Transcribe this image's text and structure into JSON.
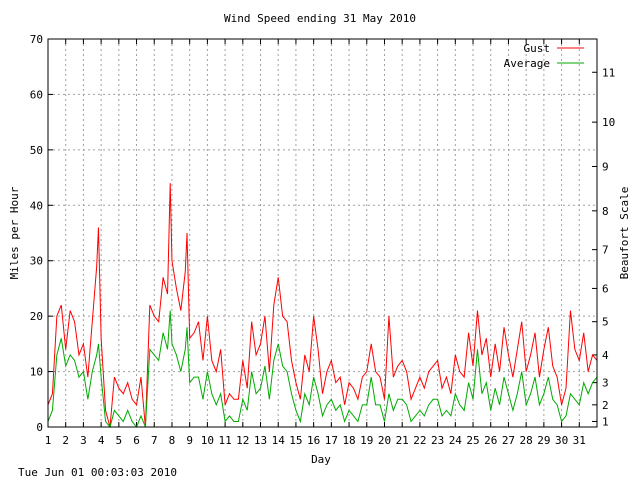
{
  "chart_data": {
    "type": "line",
    "title": "Wind Speed ending 31 May 2010",
    "xlabel": "Day",
    "ylabel": "Miles per Hour",
    "y2label": "Beaufort Scale",
    "xlim": [
      1,
      32
    ],
    "ylim": [
      0,
      70
    ],
    "x_ticks": [
      "1",
      "2",
      "3",
      "4",
      "5",
      "6",
      "7",
      "8",
      "9",
      "10",
      "11",
      "12",
      "13",
      "14",
      "15",
      "16",
      "17",
      "18",
      "19",
      "20",
      "21",
      "22",
      "23",
      "24",
      "25",
      "26",
      "27",
      "28",
      "29",
      "30",
      "31"
    ],
    "y_ticks": [
      0,
      10,
      20,
      30,
      40,
      50,
      60,
      70
    ],
    "beaufort_ticks": [
      {
        "label": "1",
        "mph": 1
      },
      {
        "label": "2",
        "mph": 4
      },
      {
        "label": "3",
        "mph": 8
      },
      {
        "label": "4",
        "mph": 13
      },
      {
        "label": "5",
        "mph": 19
      },
      {
        "label": "6",
        "mph": 25
      },
      {
        "label": "7",
        "mph": 32
      },
      {
        "label": "8",
        "mph": 39
      },
      {
        "label": "9",
        "mph": 47
      },
      {
        "label": "10",
        "mph": 55
      },
      {
        "label": "11",
        "mph": 64
      }
    ],
    "grid": true,
    "legend_position": "top-right",
    "series": [
      {
        "name": "Gust",
        "color": "#ff0000",
        "points": [
          [
            1.0,
            4
          ],
          [
            1.25,
            6
          ],
          [
            1.5,
            20
          ],
          [
            1.75,
            22
          ],
          [
            2.0,
            14
          ],
          [
            2.25,
            21
          ],
          [
            2.5,
            19
          ],
          [
            2.75,
            13
          ],
          [
            3.0,
            15
          ],
          [
            3.25,
            9
          ],
          [
            3.5,
            19
          ],
          [
            3.75,
            29
          ],
          [
            3.85,
            36
          ],
          [
            4.0,
            16
          ],
          [
            4.25,
            3
          ],
          [
            4.5,
            0
          ],
          [
            4.75,
            9
          ],
          [
            5.0,
            7
          ],
          [
            5.25,
            6
          ],
          [
            5.5,
            8
          ],
          [
            5.75,
            5
          ],
          [
            6.0,
            4
          ],
          [
            6.25,
            9
          ],
          [
            6.5,
            0
          ],
          [
            6.75,
            22
          ],
          [
            7.0,
            20
          ],
          [
            7.25,
            19
          ],
          [
            7.5,
            27
          ],
          [
            7.75,
            24
          ],
          [
            7.9,
            44
          ],
          [
            8.0,
            30
          ],
          [
            8.25,
            25
          ],
          [
            8.5,
            21
          ],
          [
            8.75,
            28
          ],
          [
            8.85,
            35
          ],
          [
            9.0,
            16
          ],
          [
            9.25,
            17
          ],
          [
            9.5,
            19
          ],
          [
            9.75,
            12
          ],
          [
            10.0,
            20
          ],
          [
            10.25,
            12
          ],
          [
            10.5,
            10
          ],
          [
            10.75,
            14
          ],
          [
            11.0,
            4
          ],
          [
            11.25,
            6
          ],
          [
            11.5,
            5
          ],
          [
            11.75,
            5
          ],
          [
            12.0,
            12
          ],
          [
            12.25,
            7
          ],
          [
            12.5,
            19
          ],
          [
            12.75,
            13
          ],
          [
            13.0,
            15
          ],
          [
            13.25,
            20
          ],
          [
            13.5,
            10
          ],
          [
            13.75,
            22
          ],
          [
            14.0,
            27
          ],
          [
            14.25,
            20
          ],
          [
            14.5,
            19
          ],
          [
            14.75,
            12
          ],
          [
            15.0,
            8
          ],
          [
            15.25,
            5
          ],
          [
            15.5,
            13
          ],
          [
            15.75,
            10
          ],
          [
            16.0,
            20
          ],
          [
            16.25,
            14
          ],
          [
            16.5,
            6
          ],
          [
            16.75,
            10
          ],
          [
            17.0,
            12
          ],
          [
            17.25,
            8
          ],
          [
            17.5,
            9
          ],
          [
            17.75,
            4
          ],
          [
            18.0,
            8
          ],
          [
            18.25,
            7
          ],
          [
            18.5,
            5
          ],
          [
            18.75,
            9
          ],
          [
            19.0,
            10
          ],
          [
            19.25,
            15
          ],
          [
            19.5,
            10
          ],
          [
            19.75,
            9
          ],
          [
            20.0,
            5
          ],
          [
            20.25,
            20
          ],
          [
            20.5,
            9
          ],
          [
            20.75,
            11
          ],
          [
            21.0,
            12
          ],
          [
            21.25,
            10
          ],
          [
            21.5,
            5
          ],
          [
            21.75,
            7
          ],
          [
            22.0,
            9
          ],
          [
            22.25,
            7
          ],
          [
            22.5,
            10
          ],
          [
            22.75,
            11
          ],
          [
            23.0,
            12
          ],
          [
            23.25,
            7
          ],
          [
            23.5,
            9
          ],
          [
            23.75,
            6
          ],
          [
            24.0,
            13
          ],
          [
            24.25,
            10
          ],
          [
            24.5,
            9
          ],
          [
            24.75,
            17
          ],
          [
            25.0,
            11
          ],
          [
            25.25,
            21
          ],
          [
            25.5,
            13
          ],
          [
            25.75,
            16
          ],
          [
            26.0,
            9
          ],
          [
            26.25,
            15
          ],
          [
            26.5,
            10
          ],
          [
            26.75,
            18
          ],
          [
            27.0,
            13
          ],
          [
            27.25,
            9
          ],
          [
            27.5,
            14
          ],
          [
            27.75,
            19
          ],
          [
            28.0,
            10
          ],
          [
            28.25,
            13
          ],
          [
            28.5,
            17
          ],
          [
            28.75,
            9
          ],
          [
            29.0,
            14
          ],
          [
            29.25,
            18
          ],
          [
            29.5,
            11
          ],
          [
            29.75,
            9
          ],
          [
            30.0,
            4
          ],
          [
            30.25,
            7
          ],
          [
            30.5,
            21
          ],
          [
            30.75,
            14
          ],
          [
            31.0,
            12
          ],
          [
            31.25,
            17
          ],
          [
            31.5,
            10
          ],
          [
            31.75,
            13
          ],
          [
            32.0,
            12
          ]
        ]
      },
      {
        "name": "Average",
        "color": "#00aa00",
        "points": [
          [
            1.0,
            1
          ],
          [
            1.25,
            3
          ],
          [
            1.5,
            13
          ],
          [
            1.75,
            16
          ],
          [
            2.0,
            11
          ],
          [
            2.25,
            13
          ],
          [
            2.5,
            12
          ],
          [
            2.75,
            9
          ],
          [
            3.0,
            10
          ],
          [
            3.25,
            5
          ],
          [
            3.5,
            10
          ],
          [
            3.75,
            13
          ],
          [
            3.85,
            15
          ],
          [
            4.0,
            9
          ],
          [
            4.25,
            1
          ],
          [
            4.5,
            0
          ],
          [
            4.75,
            3
          ],
          [
            5.0,
            2
          ],
          [
            5.25,
            1
          ],
          [
            5.5,
            3
          ],
          [
            5.75,
            1
          ],
          [
            6.0,
            0
          ],
          [
            6.25,
            2
          ],
          [
            6.5,
            0
          ],
          [
            6.75,
            14
          ],
          [
            7.0,
            13
          ],
          [
            7.25,
            12
          ],
          [
            7.5,
            17
          ],
          [
            7.75,
            14
          ],
          [
            7.9,
            21
          ],
          [
            8.0,
            15
          ],
          [
            8.25,
            13
          ],
          [
            8.5,
            10
          ],
          [
            8.75,
            14
          ],
          [
            8.85,
            18
          ],
          [
            9.0,
            8
          ],
          [
            9.25,
            9
          ],
          [
            9.5,
            9
          ],
          [
            9.75,
            5
          ],
          [
            10.0,
            10
          ],
          [
            10.25,
            6
          ],
          [
            10.5,
            4
          ],
          [
            10.75,
            6
          ],
          [
            11.0,
            1
          ],
          [
            11.25,
            2
          ],
          [
            11.5,
            1
          ],
          [
            11.75,
            1
          ],
          [
            12.0,
            5
          ],
          [
            12.25,
            3
          ],
          [
            12.5,
            10
          ],
          [
            12.75,
            6
          ],
          [
            13.0,
            7
          ],
          [
            13.25,
            11
          ],
          [
            13.5,
            5
          ],
          [
            13.75,
            12
          ],
          [
            14.0,
            15
          ],
          [
            14.25,
            11
          ],
          [
            14.5,
            10
          ],
          [
            14.75,
            6
          ],
          [
            15.0,
            3
          ],
          [
            15.25,
            1
          ],
          [
            15.5,
            6
          ],
          [
            15.75,
            4
          ],
          [
            16.0,
            9
          ],
          [
            16.25,
            6
          ],
          [
            16.5,
            2
          ],
          [
            16.75,
            4
          ],
          [
            17.0,
            5
          ],
          [
            17.25,
            3
          ],
          [
            17.5,
            4
          ],
          [
            17.75,
            1
          ],
          [
            18.0,
            3
          ],
          [
            18.25,
            2
          ],
          [
            18.5,
            1
          ],
          [
            18.75,
            4
          ],
          [
            19.0,
            4
          ],
          [
            19.25,
            9
          ],
          [
            19.5,
            4
          ],
          [
            19.75,
            4
          ],
          [
            20.0,
            1
          ],
          [
            20.25,
            6
          ],
          [
            20.5,
            3
          ],
          [
            20.75,
            5
          ],
          [
            21.0,
            5
          ],
          [
            21.25,
            4
          ],
          [
            21.5,
            1
          ],
          [
            21.75,
            2
          ],
          [
            22.0,
            3
          ],
          [
            22.25,
            2
          ],
          [
            22.5,
            4
          ],
          [
            22.75,
            5
          ],
          [
            23.0,
            5
          ],
          [
            23.25,
            2
          ],
          [
            23.5,
            3
          ],
          [
            23.75,
            2
          ],
          [
            24.0,
            6
          ],
          [
            24.25,
            4
          ],
          [
            24.5,
            3
          ],
          [
            24.75,
            8
          ],
          [
            25.0,
            5
          ],
          [
            25.25,
            14
          ],
          [
            25.5,
            6
          ],
          [
            25.75,
            8
          ],
          [
            26.0,
            3
          ],
          [
            26.25,
            7
          ],
          [
            26.5,
            4
          ],
          [
            26.75,
            9
          ],
          [
            27.0,
            6
          ],
          [
            27.25,
            3
          ],
          [
            27.5,
            6
          ],
          [
            27.75,
            10
          ],
          [
            28.0,
            4
          ],
          [
            28.25,
            6
          ],
          [
            28.5,
            9
          ],
          [
            28.75,
            4
          ],
          [
            29.0,
            6
          ],
          [
            29.25,
            9
          ],
          [
            29.5,
            5
          ],
          [
            29.75,
            4
          ],
          [
            30.0,
            1
          ],
          [
            30.25,
            2
          ],
          [
            30.5,
            6
          ],
          [
            30.75,
            5
          ],
          [
            31.0,
            4
          ],
          [
            31.25,
            8
          ],
          [
            31.5,
            6
          ],
          [
            31.75,
            8
          ],
          [
            32.0,
            9
          ]
        ]
      }
    ]
  },
  "footer": {
    "timestamp": "Tue Jun 01 00:03:03 2010"
  }
}
